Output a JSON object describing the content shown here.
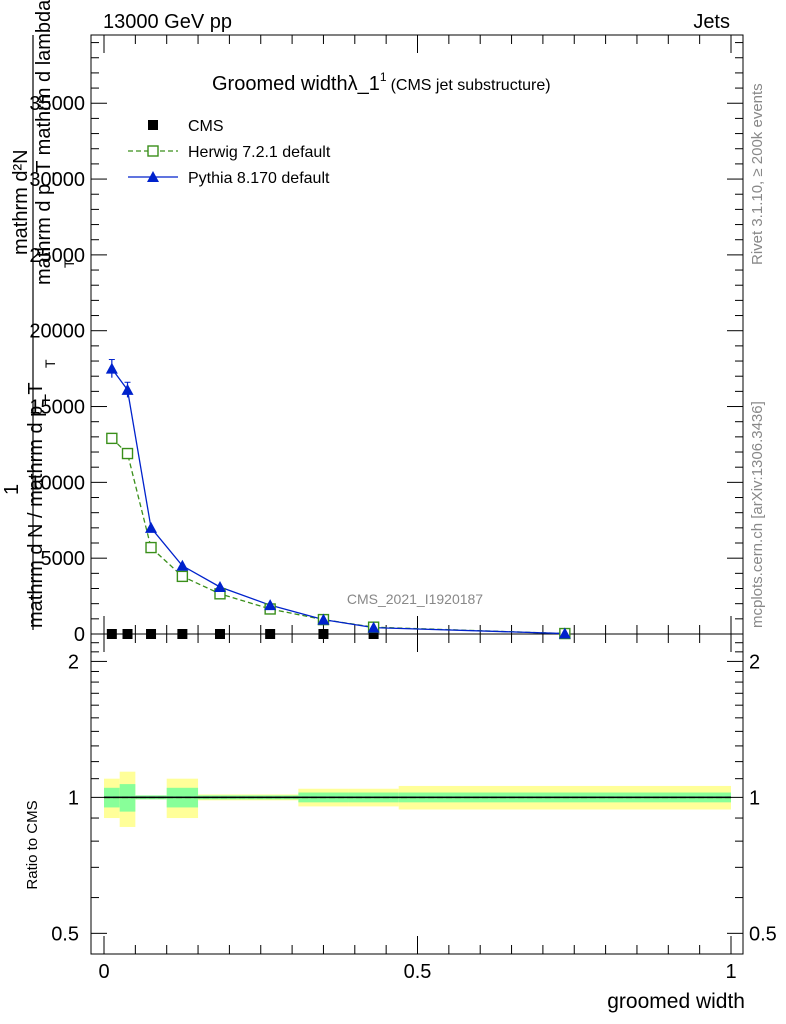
{
  "header": {
    "left": "13000 GeV pp",
    "right": "Jets"
  },
  "side": {
    "rivet": "Rivet 3.1.10, ≥ 200k events",
    "mcplots": "mcplots.cern.ch [arXiv:1306.3436]"
  },
  "chart_data": {
    "type": "line",
    "title": "Groomed widthλ_1",
    "title_sup": "1",
    "subtitle": "(CMS jet substructure)",
    "watermark": "CMS_2021_I1920187",
    "xlabel": "groomed width",
    "ylabel_top": "mathrm d²N",
    "ylabel_top_sub": "mathrm d p_T mathrm d lambda",
    "ylabel_main_num": "1",
    "ylabel_main_den": "mathrm d N / mathrm d p_T",
    "ylabel_main_sub": "T",
    "ratio_ylabel": "Ratio to CMS",
    "xlim": [
      0,
      1
    ],
    "ylim": [
      0,
      39500
    ],
    "ratio_ylim": [
      0.45,
      2.3
    ],
    "x_ticks": [
      0,
      0.5,
      1
    ],
    "x_tick_labels": [
      "0",
      "0.5",
      "1"
    ],
    "y_ticks": [
      0,
      5000,
      10000,
      15000,
      20000,
      25000,
      30000,
      35000
    ],
    "y_tick_labels": [
      "0",
      "5000",
      "10000",
      "15000",
      "20000",
      "25000",
      "30000",
      "35000"
    ],
    "ratio_ticks": [
      0.5,
      1,
      2
    ],
    "ratio_tick_labels": [
      "0.5",
      "1",
      "2"
    ],
    "legend_position": "top-left",
    "colors": {
      "cms": "#000000",
      "herwig": "#3a8f1a",
      "pythia": "#0022cc",
      "band_inner": "#88ff99",
      "band_outer": "#ffff99"
    },
    "bins": [
      [
        0.0,
        0.025
      ],
      [
        0.025,
        0.05
      ],
      [
        0.05,
        0.1
      ],
      [
        0.1,
        0.15
      ],
      [
        0.15,
        0.22
      ],
      [
        0.22,
        0.31
      ],
      [
        0.31,
        0.39
      ],
      [
        0.39,
        0.47
      ],
      [
        0.47,
        1.0
      ]
    ],
    "series": [
      {
        "name": "CMS",
        "x": [
          0.0125,
          0.0375,
          0.075,
          0.125,
          0.185,
          0.265,
          0.35,
          0.43,
          0.735
        ],
        "y": [
          0,
          0,
          0,
          0,
          0,
          0,
          0,
          0,
          0
        ],
        "ratio_band_inner": [
          0.05,
          0.07,
          0.01,
          0.05,
          0.01,
          0.01,
          0.025,
          0.025,
          0.025
        ],
        "ratio_band_outer": [
          0.1,
          0.14,
          0.01,
          0.1,
          0.015,
          0.015,
          0.045,
          0.045,
          0.06
        ]
      },
      {
        "name": "Herwig 7.2.1 default",
        "x": [
          0.0125,
          0.0375,
          0.075,
          0.125,
          0.185,
          0.265,
          0.35,
          0.43,
          0.735
        ],
        "y": [
          12900,
          11900,
          5700,
          3800,
          2650,
          1650,
          950,
          450,
          30
        ]
      },
      {
        "name": "Pythia 8.170 default",
        "x": [
          0.0125,
          0.0375,
          0.075,
          0.125,
          0.185,
          0.265,
          0.35,
          0.43,
          0.735
        ],
        "y": [
          17500,
          16100,
          7000,
          4500,
          3100,
          1900,
          950,
          420,
          30
        ],
        "yerr": [
          600,
          500,
          0,
          0,
          0,
          0,
          0,
          0,
          0
        ]
      }
    ]
  }
}
